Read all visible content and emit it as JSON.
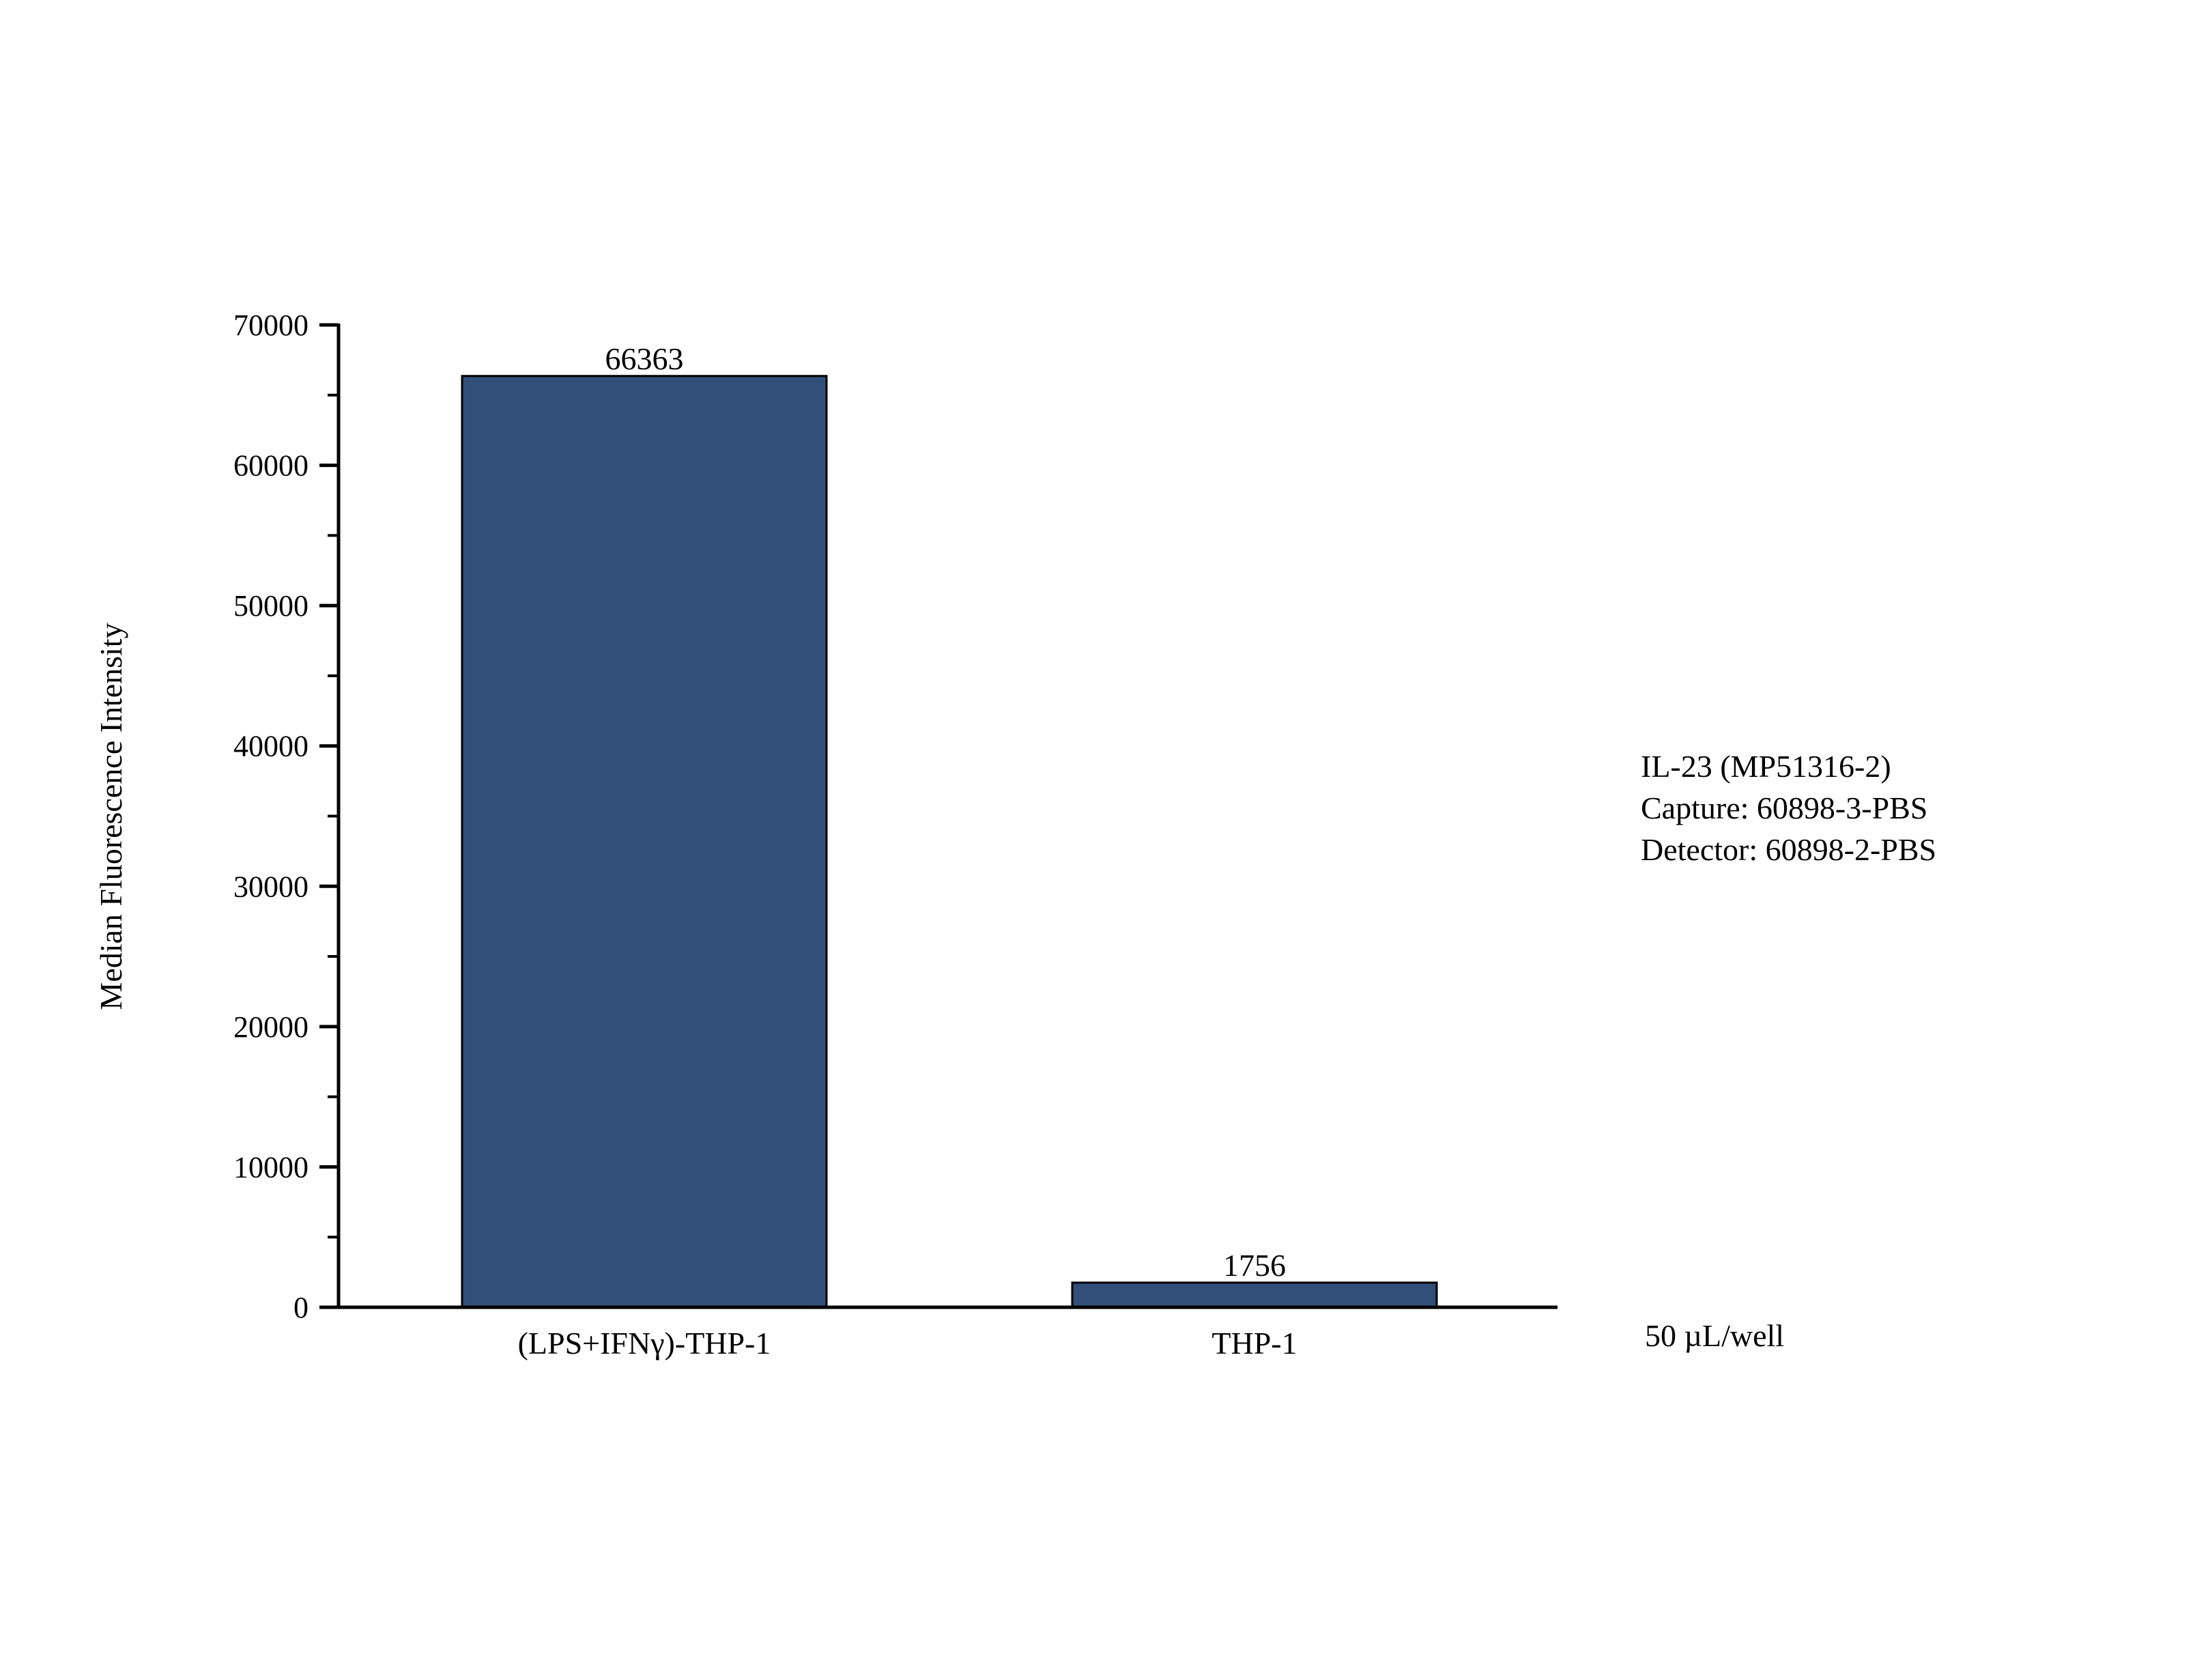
{
  "chart_data": {
    "type": "bar",
    "title": "",
    "xlabel": "",
    "ylabel": "Median Fluorescence Intensity",
    "ylim": [
      0,
      70000
    ],
    "yticks": [
      0,
      10000,
      20000,
      30000,
      40000,
      50000,
      60000,
      70000
    ],
    "categories": [
      "(LPS+IFNγ)-THP-1",
      "THP-1"
    ],
    "values": [
      66363,
      1756
    ],
    "data_labels": [
      "66363",
      "1756"
    ],
    "grid": false,
    "legend": "none",
    "bar_color": "#314f78",
    "bar_edge_color": "#000000",
    "annotations": {
      "lines": [
        "IL-23 (MP51316-2)",
        "Capture: 60898-3-PBS",
        "Detector: 60898-2-PBS"
      ],
      "volume": "50 µL/well"
    }
  }
}
